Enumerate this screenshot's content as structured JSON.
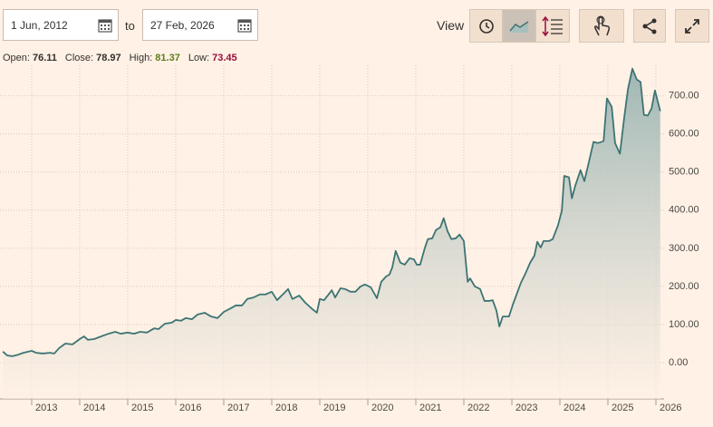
{
  "controls": {
    "start_date": "1 Jun, 2012",
    "separator": "to",
    "end_date": "27 Feb, 2026",
    "view_label": "View"
  },
  "summary": [
    {
      "label": "Open:",
      "value": 76.11
    },
    {
      "label": "Close:",
      "value": 78.97
    },
    {
      "label": "High:",
      "value": 81.37
    },
    {
      "label": "Low:",
      "value": 73.45
    }
  ],
  "chart_data": {
    "type": "area",
    "color": "#3d7474",
    "grid": true,
    "xlim": [
      2012.34,
      2026.17
    ],
    "xticks": [
      2013,
      2014,
      2015,
      2016,
      2017,
      2018,
      2019,
      2020,
      2021,
      2022,
      2023,
      2024,
      2025,
      2026
    ],
    "ylim": [
      -95,
      780
    ],
    "yticks": [
      {
        "value": 0,
        "label": "0.00"
      },
      {
        "value": 100,
        "label": "100.00"
      },
      {
        "value": 200,
        "label": "200.00"
      },
      {
        "value": 300,
        "label": "300.00"
      },
      {
        "value": 400,
        "label": "400.00"
      },
      {
        "value": 500,
        "label": "500.00"
      },
      {
        "value": 600,
        "label": "600.00"
      },
      {
        "value": 700,
        "label": "700.00"
      }
    ],
    "x": [
      2012.4,
      2012.49,
      2012.6,
      2012.72,
      2012.83,
      2013.0,
      2013.09,
      2013.23,
      2013.38,
      2013.47,
      2013.57,
      2013.7,
      2013.85,
      2014.0,
      2014.09,
      2014.17,
      2014.3,
      2014.45,
      2014.6,
      2014.74,
      2014.85,
      2015.0,
      2015.13,
      2015.26,
      2015.4,
      2015.55,
      2015.64,
      2015.77,
      2015.92,
      2016.0,
      2016.11,
      2016.21,
      2016.34,
      2016.45,
      2016.6,
      2016.74,
      2016.87,
      2017.0,
      2017.15,
      2017.25,
      2017.38,
      2017.49,
      2017.62,
      2017.75,
      2017.87,
      2018.0,
      2018.11,
      2018.23,
      2018.34,
      2018.43,
      2018.57,
      2018.7,
      2018.85,
      2018.94,
      2019.0,
      2019.09,
      2019.25,
      2019.32,
      2019.43,
      2019.53,
      2019.64,
      2019.74,
      2019.85,
      2019.94,
      2020.06,
      2020.19,
      2020.28,
      2020.38,
      2020.45,
      2020.51,
      2020.58,
      2020.68,
      2020.77,
      2020.87,
      2020.96,
      2021.02,
      2021.09,
      2021.19,
      2021.25,
      2021.34,
      2021.42,
      2021.51,
      2021.58,
      2021.66,
      2021.74,
      2021.83,
      2021.91,
      2022.0,
      2022.08,
      2022.13,
      2022.23,
      2022.34,
      2022.43,
      2022.53,
      2022.6,
      2022.68,
      2022.74,
      2022.81,
      2022.94,
      2023.02,
      2023.09,
      2023.19,
      2023.28,
      2023.38,
      2023.47,
      2023.53,
      2023.6,
      2023.66,
      2023.77,
      2023.85,
      2023.96,
      2024.04,
      2024.09,
      2024.19,
      2024.25,
      2024.32,
      2024.43,
      2024.51,
      2024.6,
      2024.7,
      2024.79,
      2024.91,
      2024.98,
      2025.08,
      2025.15,
      2025.25,
      2025.34,
      2025.42,
      2025.51,
      2025.6,
      2025.68,
      2025.75,
      2025.83,
      2025.91,
      2025.98,
      2026.09
    ],
    "values": [
      29,
      19,
      17,
      21,
      26,
      31,
      26,
      24,
      26,
      24,
      38,
      50,
      48,
      62,
      69,
      60,
      62,
      69,
      76,
      81,
      76,
      79,
      76,
      81,
      79,
      90,
      88,
      102,
      105,
      112,
      110,
      117,
      114,
      126,
      131,
      121,
      117,
      133,
      143,
      150,
      150,
      167,
      171,
      179,
      179,
      186,
      164,
      179,
      193,
      167,
      176,
      157,
      140,
      131,
      167,
      164,
      190,
      171,
      195,
      193,
      186,
      186,
      200,
      205,
      198,
      169,
      212,
      226,
      231,
      250,
      293,
      262,
      257,
      274,
      271,
      257,
      257,
      302,
      324,
      326,
      348,
      355,
      379,
      345,
      324,
      326,
      336,
      319,
      212,
      221,
      200,
      193,
      162,
      162,
      164,
      136,
      95,
      121,
      121,
      152,
      176,
      210,
      233,
      262,
      281,
      317,
      302,
      319,
      319,
      324,
      360,
      398,
      490,
      486,
      431,
      464,
      505,
      476,
      524,
      579,
      576,
      581,
      693,
      671,
      576,
      548,
      643,
      719,
      771,
      743,
      736,
      650,
      648,
      667,
      714,
      660
    ]
  }
}
